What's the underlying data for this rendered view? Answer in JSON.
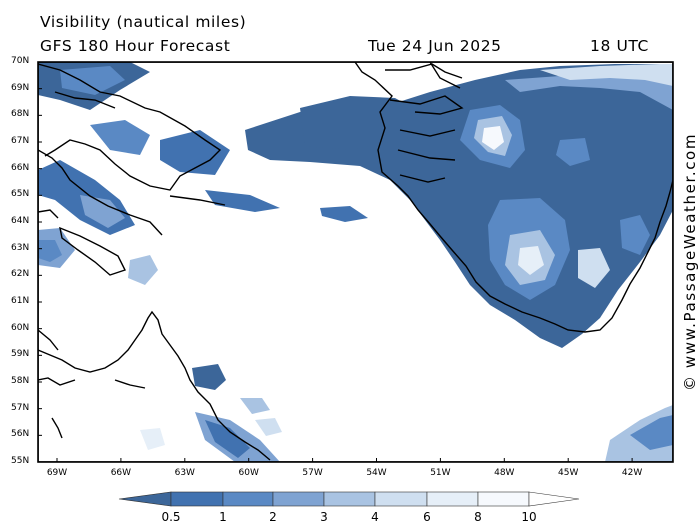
{
  "header": {
    "title": "Visibility (nautical miles)",
    "model": "GFS 180 Hour Forecast",
    "date": "Tue 24 Jun 2025",
    "time": "18 UTC"
  },
  "credit": "© www.PassageWeather.com",
  "map": {
    "lat_labels": [
      "70N",
      "69N",
      "68N",
      "67N",
      "66N",
      "65N",
      "64N",
      "63N",
      "62N",
      "61N",
      "60N",
      "59N",
      "58N",
      "57N",
      "56N",
      "55N"
    ],
    "lon_labels": [
      "69W",
      "66W",
      "63W",
      "60W",
      "57W",
      "54W",
      "51W",
      "48W",
      "45W",
      "42W"
    ],
    "colors": {
      "lt_0_5": "#3c6699",
      "v0_5_1": "#4172b0",
      "v1_2": "#5a89c4",
      "v2_3": "#7fa3d2",
      "v3_4": "#a9c3e2",
      "v4_6": "#cfdff0",
      "v6_8": "#e6eff8",
      "v8_10": "#f6f9fd",
      "gt_10": "#ffffff"
    }
  },
  "colorbar": {
    "labels": [
      "0.5",
      "1",
      "2",
      "3",
      "4",
      "6",
      "8",
      "10"
    ]
  }
}
